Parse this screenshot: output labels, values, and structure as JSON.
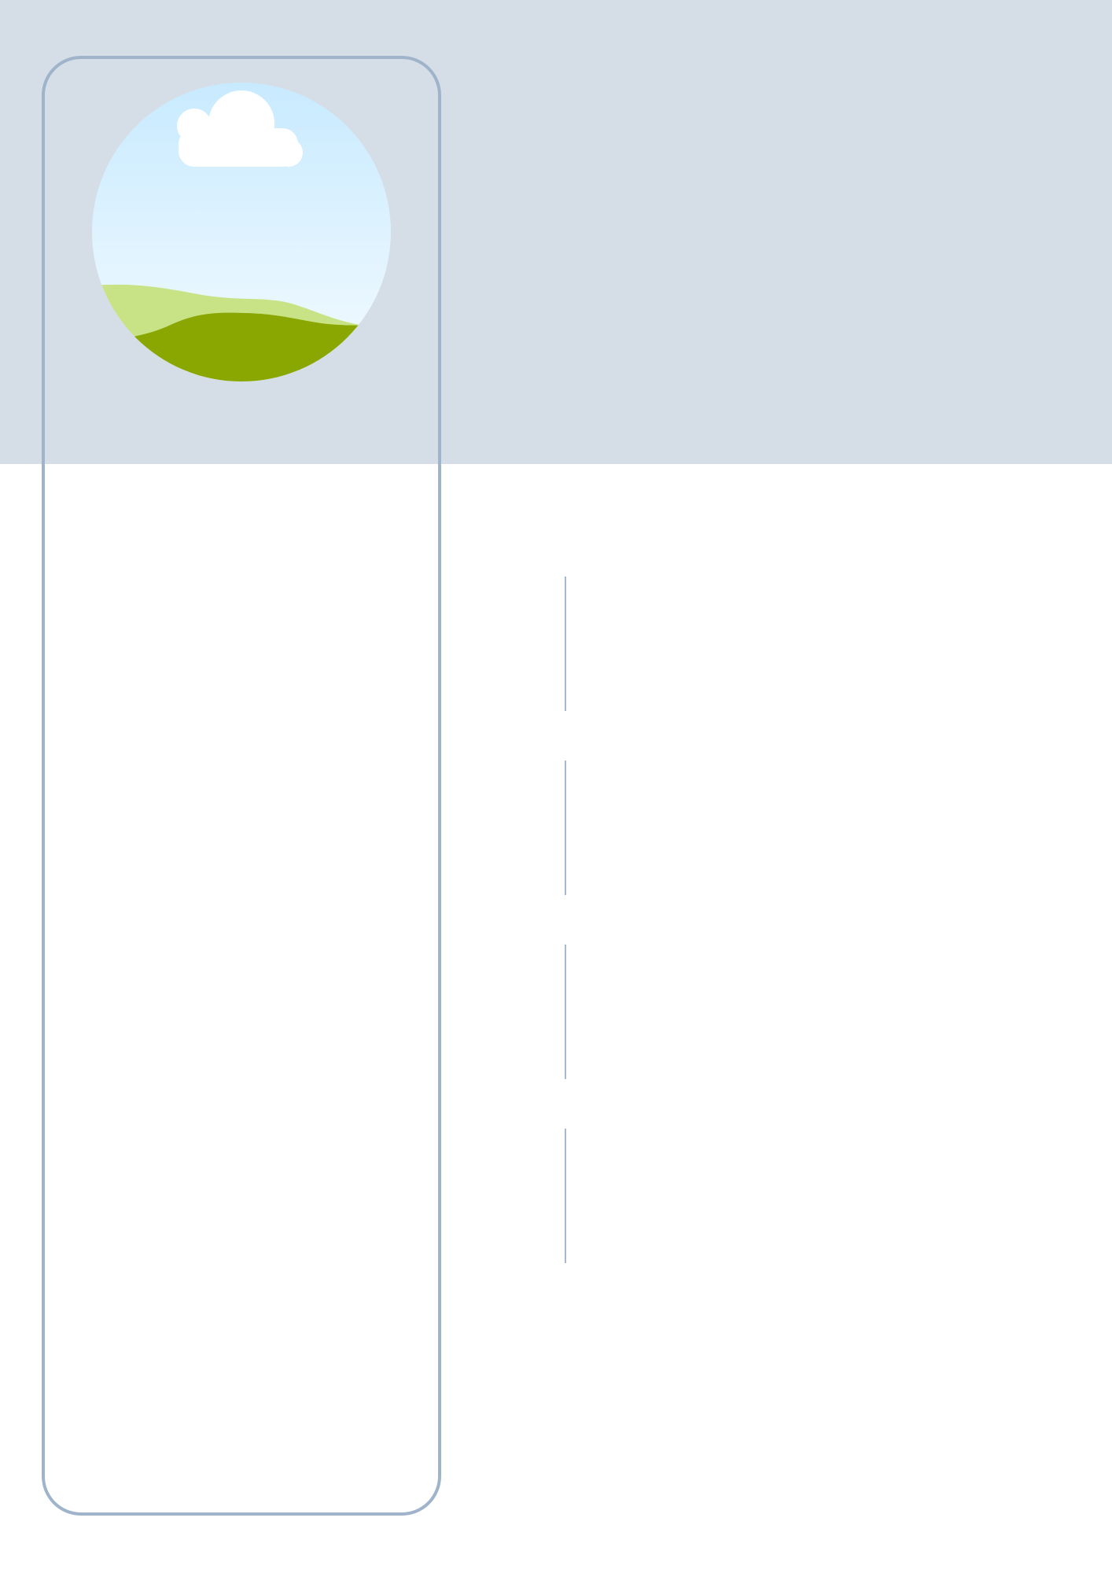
{
  "colors": {
    "header_background": "#d5dee7",
    "card_border": "#9fb4ca",
    "divider": "#a8b9cb",
    "sky_top": "#c8eaff",
    "sky_bottom": "#f4fbff",
    "cloud": "#ffffff",
    "hill_back": "#c8e286",
    "hill_front": "#8aa600"
  },
  "icons": {
    "avatar": "landscape-placeholder-icon"
  }
}
